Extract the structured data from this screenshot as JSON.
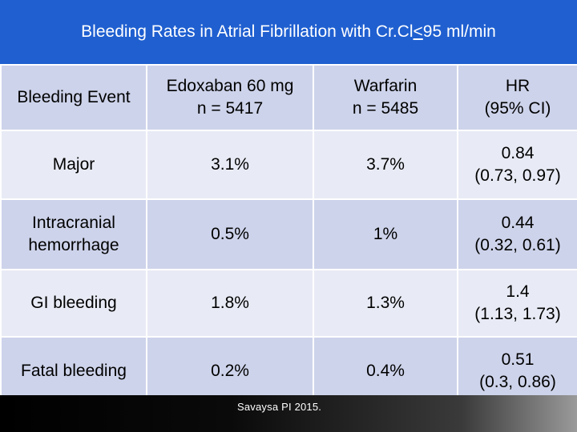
{
  "title": {
    "prefix": "Bleeding Rates in Atrial Fibrillation with Cr.Cl ",
    "operator": "<",
    "suffix": " 95 ml/min"
  },
  "table": {
    "headers": [
      [
        "Bleeding Event"
      ],
      [
        "Edoxaban 60 mg",
        "n = 5417"
      ],
      [
        "Warfarin",
        "n = 5485"
      ],
      [
        "HR",
        "(95% CI)"
      ]
    ],
    "rows": [
      {
        "event": [
          "Major"
        ],
        "edoxaban": "3.1%",
        "warfarin": "3.7%",
        "hr": [
          "0.84",
          "(0.73, 0.97)"
        ]
      },
      {
        "event": [
          "Intracranial",
          "hemorrhage"
        ],
        "edoxaban": "0.5%",
        "warfarin": "1%",
        "hr": [
          "0.44",
          "(0.32, 0.61)"
        ]
      },
      {
        "event": [
          "GI bleeding"
        ],
        "edoxaban": "1.8%",
        "warfarin": "1.3%",
        "hr": [
          "1.4",
          "(1.13, 1.73)"
        ]
      },
      {
        "event": [
          "Fatal bleeding"
        ],
        "edoxaban": "0.2%",
        "warfarin": "0.4%",
        "hr": [
          "0.51",
          "(0.3, 0.86)"
        ]
      }
    ]
  },
  "footer": {
    "source": "Savaysa PI 2015."
  },
  "colors": {
    "title_bg": "#1f5fd0",
    "header_row_bg": "#cdd3ea",
    "odd_row_bg": "#e8ebf5",
    "even_row_bg": "#cdd3ea"
  }
}
